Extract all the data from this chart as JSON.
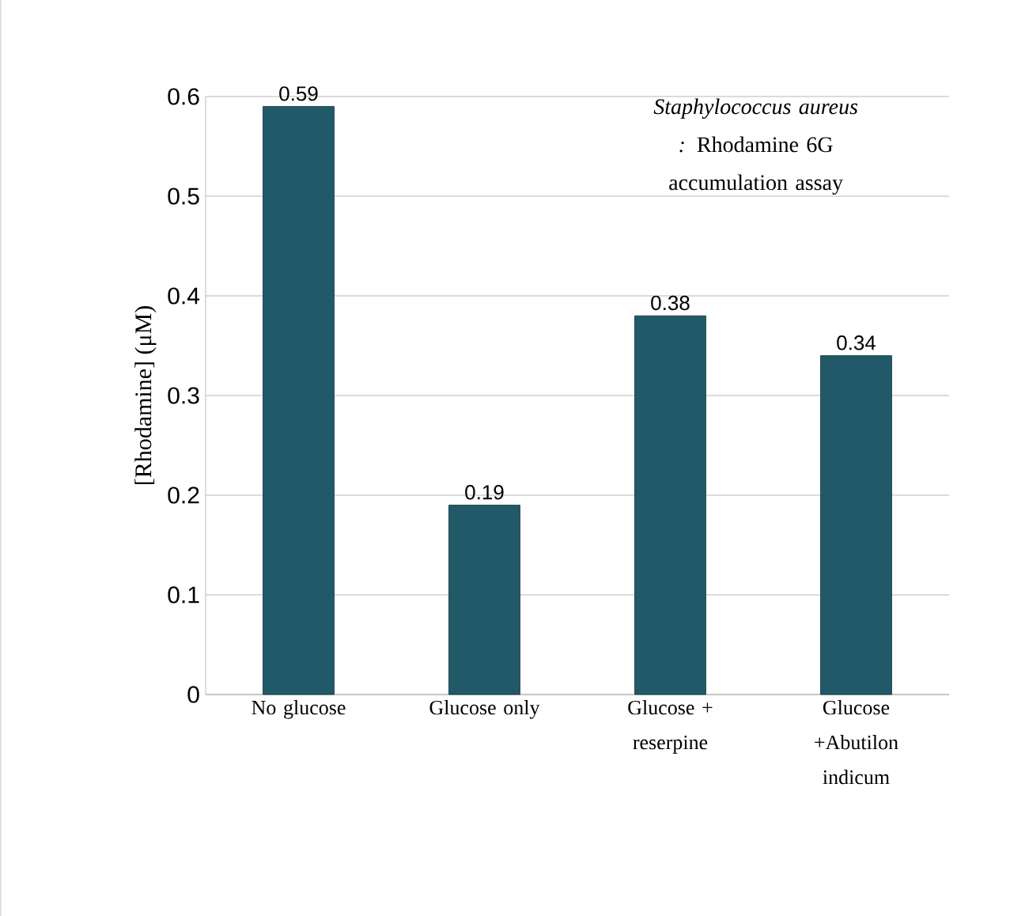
{
  "chart_data": {
    "type": "bar",
    "title": "*Staphylococcus aureus :* Rhodamine 6G accumulation assay",
    "ylabel": "[Rhodamine] (μM)",
    "categories": [
      "No glucose",
      "Glucose only",
      "Glucose + reserpine",
      "Glucose +Abutilon indicum"
    ],
    "values": [
      0.59,
      0.19,
      0.38,
      0.34
    ],
    "color": "#215968",
    "ylim": [
      0,
      0.6
    ],
    "yticks": [
      0,
      0.1,
      0.2,
      0.3,
      0.4,
      0.5,
      0.6
    ],
    "grid": "y",
    "data_labels": true
  }
}
